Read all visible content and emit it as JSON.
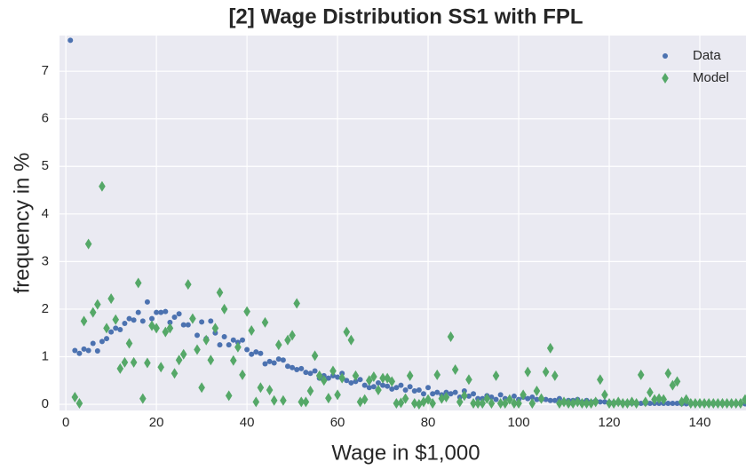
{
  "chart_data": {
    "type": "scatter",
    "title": "[2] Wage Distribution SS1 with FPL",
    "x_label": "Wage in $1,000",
    "y_label": "frequency in %",
    "x": [
      1,
      2,
      3,
      4,
      5,
      6,
      7,
      8,
      9,
      10,
      11,
      12,
      13,
      14,
      15,
      16,
      17,
      18,
      19,
      20,
      21,
      22,
      23,
      24,
      25,
      26,
      27,
      28,
      29,
      30,
      31,
      32,
      33,
      34,
      35,
      36,
      37,
      38,
      39,
      40,
      41,
      42,
      43,
      44,
      45,
      46,
      47,
      48,
      49,
      50,
      51,
      52,
      53,
      54,
      55,
      56,
      57,
      58,
      59,
      60,
      61,
      62,
      63,
      64,
      65,
      66,
      67,
      68,
      69,
      70,
      71,
      72,
      73,
      74,
      75,
      76,
      77,
      78,
      79,
      80,
      81,
      82,
      83,
      84,
      85,
      86,
      87,
      88,
      89,
      90,
      91,
      92,
      93,
      94,
      95,
      96,
      97,
      98,
      99,
      100,
      101,
      102,
      103,
      104,
      105,
      106,
      107,
      108,
      109,
      110,
      111,
      112,
      113,
      114,
      115,
      116,
      117,
      118,
      119,
      120,
      121,
      122,
      123,
      124,
      125,
      126,
      127,
      128,
      129,
      130,
      131,
      132,
      133,
      134,
      135,
      136,
      137,
      138,
      139,
      140,
      141,
      142,
      143,
      144,
      145,
      146,
      147,
      148,
      149,
      150
    ],
    "series": [
      {
        "name": "Data",
        "color": "#4c72b0",
        "marker": "circle",
        "values": [
          7.65,
          1.13,
          1.07,
          1.16,
          1.13,
          1.28,
          1.12,
          1.32,
          1.38,
          1.52,
          1.6,
          1.57,
          1.7,
          1.8,
          1.77,
          1.93,
          1.75,
          2.15,
          1.8,
          1.93,
          1.93,
          1.95,
          1.72,
          1.83,
          1.9,
          1.67,
          1.67,
          1.8,
          1.45,
          1.73,
          1.38,
          1.75,
          1.5,
          1.25,
          1.42,
          1.25,
          1.35,
          1.3,
          1.35,
          1.15,
          1.05,
          1.1,
          1.07,
          0.85,
          0.9,
          0.87,
          0.95,
          0.93,
          0.8,
          0.77,
          0.73,
          0.75,
          0.67,
          0.65,
          0.7,
          0.55,
          0.6,
          0.55,
          0.6,
          0.57,
          0.65,
          0.5,
          0.45,
          0.48,
          0.52,
          0.4,
          0.35,
          0.37,
          0.45,
          0.4,
          0.38,
          0.32,
          0.35,
          0.4,
          0.3,
          0.37,
          0.28,
          0.3,
          0.22,
          0.35,
          0.22,
          0.25,
          0.2,
          0.25,
          0.22,
          0.25,
          0.15,
          0.28,
          0.17,
          0.22,
          0.12,
          0.12,
          0.18,
          0.15,
          0.1,
          0.2,
          0.12,
          0.1,
          0.17,
          0.1,
          0.15,
          0.12,
          0.15,
          0.1,
          0.1,
          0.1,
          0.08,
          0.08,
          0.12,
          0.06,
          0.08,
          0.08,
          0.1,
          0.05,
          0.08,
          0.05,
          0.07,
          0.05,
          0.05,
          0.04,
          0.03,
          0.03,
          0.03,
          0.03,
          0.02,
          0.03,
          0.02,
          0.02,
          0.02,
          0.02,
          0.02,
          0.02,
          0.02,
          0.02,
          0.02,
          0.01,
          0.01,
          0.01,
          0.01,
          0.01,
          0.01,
          0.01,
          0.01,
          0.01,
          0.01,
          0.01,
          0.01,
          0.01,
          0.01,
          0.01
        ]
      },
      {
        "name": "Model",
        "color": "#55a868",
        "marker": "diamond",
        "values": [
          null,
          0.15,
          0.02,
          1.75,
          3.37,
          1.93,
          2.1,
          4.58,
          1.6,
          2.22,
          1.78,
          0.75,
          0.88,
          1.28,
          0.88,
          2.55,
          0.12,
          0.87,
          1.65,
          1.6,
          0.78,
          1.52,
          1.6,
          0.65,
          0.93,
          1.05,
          2.52,
          1.8,
          1.15,
          0.35,
          1.35,
          0.93,
          1.6,
          2.35,
          2.0,
          0.18,
          0.92,
          1.2,
          0.62,
          1.95,
          1.55,
          0.05,
          0.35,
          1.72,
          0.3,
          0.08,
          1.25,
          0.08,
          1.35,
          1.45,
          2.12,
          0.05,
          0.05,
          0.28,
          1.02,
          0.6,
          0.5,
          0.13,
          0.7,
          0.2,
          0.55,
          1.52,
          1.35,
          0.6,
          0.05,
          0.1,
          0.5,
          0.58,
          0.3,
          0.55,
          0.55,
          0.48,
          0.02,
          0.03,
          0.12,
          0.6,
          0.02,
          0.0,
          0.05,
          0.1,
          0.02,
          0.62,
          0.12,
          0.15,
          1.42,
          0.73,
          0.05,
          0.18,
          0.52,
          0.02,
          0.02,
          0.02,
          0.12,
          0.02,
          0.6,
          0.02,
          0.02,
          0.1,
          0.02,
          0.02,
          0.2,
          0.68,
          0.02,
          0.28,
          0.12,
          0.68,
          1.18,
          0.6,
          0.02,
          0.05,
          0.02,
          0.02,
          0.05,
          0.02,
          0.02,
          0.02,
          0.05,
          0.52,
          0.2,
          0.02,
          0.02,
          0.05,
          0.02,
          0.02,
          0.05,
          0.02,
          0.62,
          0.05,
          0.25,
          0.1,
          0.12,
          0.1,
          0.65,
          0.4,
          0.48,
          0.05,
          0.1,
          0.02,
          0.02,
          0.02,
          0.02,
          0.02,
          0.02,
          0.02,
          0.02,
          0.02,
          0.02,
          0.02,
          0.02,
          0.1
        ]
      }
    ],
    "xlim": [
      -1.4,
      150.2
    ],
    "ylim": [
      -0.13,
      7.75
    ],
    "xticks": [
      0,
      20,
      40,
      60,
      80,
      100,
      120,
      140
    ],
    "yticks": [
      0,
      1,
      2,
      3,
      4,
      5,
      6,
      7
    ],
    "grid": true,
    "legend": "upper right"
  }
}
